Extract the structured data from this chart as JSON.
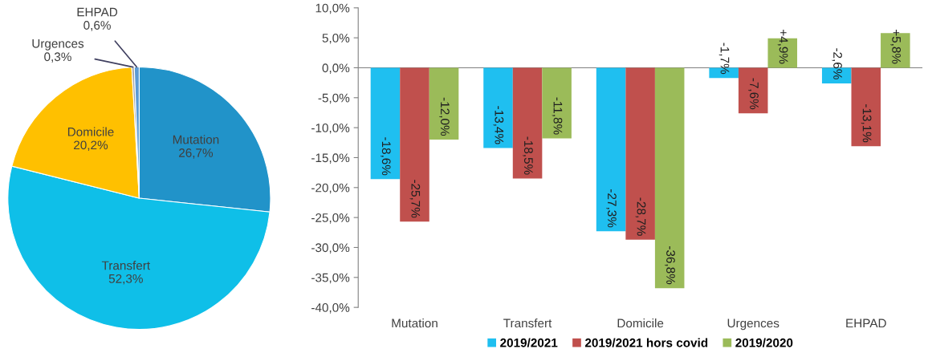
{
  "chart_data": [
    {
      "type": "pie",
      "categories": [
        "Mutation",
        "Transfert",
        "Domicile",
        "Urgences",
        "EHPAD"
      ],
      "values": [
        26.7,
        52.3,
        20.2,
        0.3,
        0.6
      ],
      "value_labels": [
        "26,7%",
        "52,3%",
        "20,2%",
        "0,3%",
        "0,6%"
      ],
      "colors": [
        "#2193c9",
        "#0fbfe8",
        "#ffc000",
        "#a5a5a5",
        "#5b9bd5"
      ]
    },
    {
      "type": "bar",
      "categories": [
        "Mutation",
        "Transfert",
        "Domicile",
        "Urgences",
        "EHPAD"
      ],
      "legend": "bottom",
      "grid": false,
      "ref_lines": [
        {
          "axis": "y",
          "value": 0,
          "color": "#808080"
        }
      ],
      "ylim": [
        -40,
        10
      ],
      "yticks": [
        {
          "value": -40,
          "label": "-40,0%"
        },
        {
          "value": -35,
          "label": "-35,0%"
        },
        {
          "value": -30,
          "label": "-30,0%"
        },
        {
          "value": -25,
          "label": "-25,0%"
        },
        {
          "value": -20,
          "label": "-20,0%"
        },
        {
          "value": -15,
          "label": "-15,0%"
        },
        {
          "value": -10,
          "label": "-10,0%"
        },
        {
          "value": -5,
          "label": "-5,0%"
        },
        {
          "value": 0,
          "label": "0,0%"
        },
        {
          "value": 5,
          "label": "5,0%"
        },
        {
          "value": 10,
          "label": "10,0%"
        }
      ],
      "series": [
        {
          "name": "2019/2021",
          "color": "#1fbff0",
          "values": [
            -18.6,
            -13.4,
            -27.3,
            -1.7,
            -2.6
          ],
          "value_labels": [
            "-18,6%",
            "-13,4%",
            "-27,3%",
            "-1,7%",
            "-2,6%"
          ]
        },
        {
          "name": "2019/2021 hors covid",
          "color": "#c0504d",
          "values": [
            -25.7,
            -18.5,
            -28.7,
            -7.6,
            -13.1
          ],
          "value_labels": [
            "-25,7%",
            "-18,5%",
            "-28,7%",
            "-7,6%",
            "-13,1%"
          ]
        },
        {
          "name": "2019/2020",
          "color": "#9bbb59",
          "values": [
            -12.0,
            -11.8,
            -36.8,
            4.9,
            5.8
          ],
          "value_labels": [
            "-12,0%",
            "-11,8%",
            "-36,8%",
            "+4,9%",
            "+5,8%"
          ]
        }
      ]
    }
  ]
}
